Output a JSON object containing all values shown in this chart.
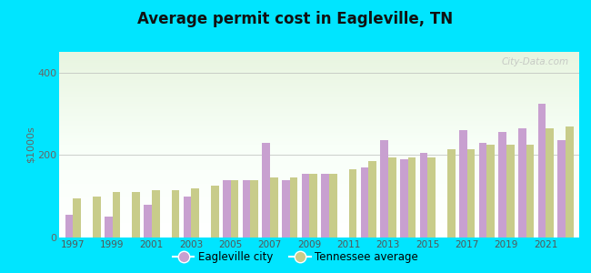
{
  "title": "Average permit cost in Eagleville, TN",
  "ylabel": "$1000s",
  "background_color": "#00e5ff",
  "city_color": "#c8a0d0",
  "avg_color": "#c8cc8a",
  "years": [
    1997,
    1998,
    1999,
    2000,
    2001,
    2002,
    2003,
    2004,
    2005,
    2006,
    2007,
    2008,
    2009,
    2010,
    2011,
    2012,
    2013,
    2014,
    2015,
    2016,
    2017,
    2018,
    2019,
    2020,
    2021,
    2022
  ],
  "city_values": [
    55,
    0,
    50,
    0,
    80,
    0,
    100,
    0,
    140,
    140,
    230,
    140,
    155,
    155,
    0,
    170,
    235,
    190,
    205,
    0,
    260,
    230,
    255,
    265,
    325,
    235
  ],
  "avg_values": [
    95,
    100,
    110,
    110,
    115,
    115,
    120,
    125,
    140,
    140,
    145,
    145,
    155,
    155,
    165,
    185,
    195,
    195,
    195,
    215,
    215,
    225,
    225,
    225,
    265,
    270
  ],
  "ylim": [
    0,
    450
  ],
  "yticks": [
    0,
    200,
    400
  ],
  "legend_city": "Eagleville city",
  "legend_avg": "Tennessee average",
  "watermark": "City-Data.com"
}
